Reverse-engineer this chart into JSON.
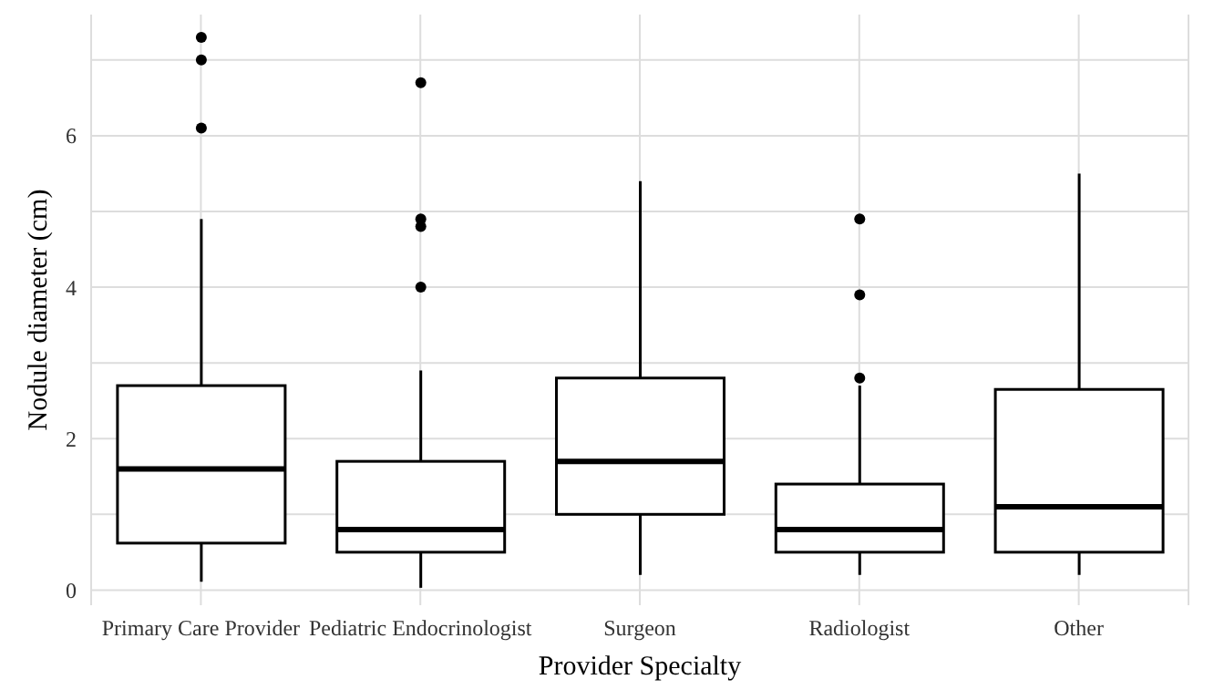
{
  "chart_data": {
    "type": "box",
    "xlabel": "Provider Specialty",
    "ylabel": "Nodule diameter (cm)",
    "categories": [
      "Primary Care Provider",
      "Pediatric Endocrinologist",
      "Surgeon",
      "Radiologist",
      "Other"
    ],
    "color": "#000000",
    "ylim": [
      -0.2,
      7.6
    ],
    "yticks": [
      0,
      2,
      4,
      6
    ],
    "grid": true,
    "boxes": [
      {
        "low": 0.11,
        "q1": 0.62,
        "median": 1.6,
        "q3": 2.7,
        "high": 4.9,
        "outliers": [
          7.3,
          7.0,
          6.1
        ]
      },
      {
        "low": 0.03,
        "q1": 0.5,
        "median": 0.8,
        "q3": 1.7,
        "high": 2.9,
        "outliers": [
          6.7,
          4.9,
          4.8,
          4.0
        ]
      },
      {
        "low": 0.2,
        "q1": 1.0,
        "median": 1.7,
        "q3": 2.8,
        "high": 5.4
      },
      {
        "low": 0.2,
        "q1": 0.5,
        "median": 0.8,
        "q3": 1.4,
        "high": 2.7,
        "outliers": [
          4.9,
          3.9,
          2.8
        ]
      },
      {
        "low": 0.2,
        "q1": 0.5,
        "median": 1.1,
        "q3": 2.65,
        "high": 5.5
      }
    ]
  }
}
